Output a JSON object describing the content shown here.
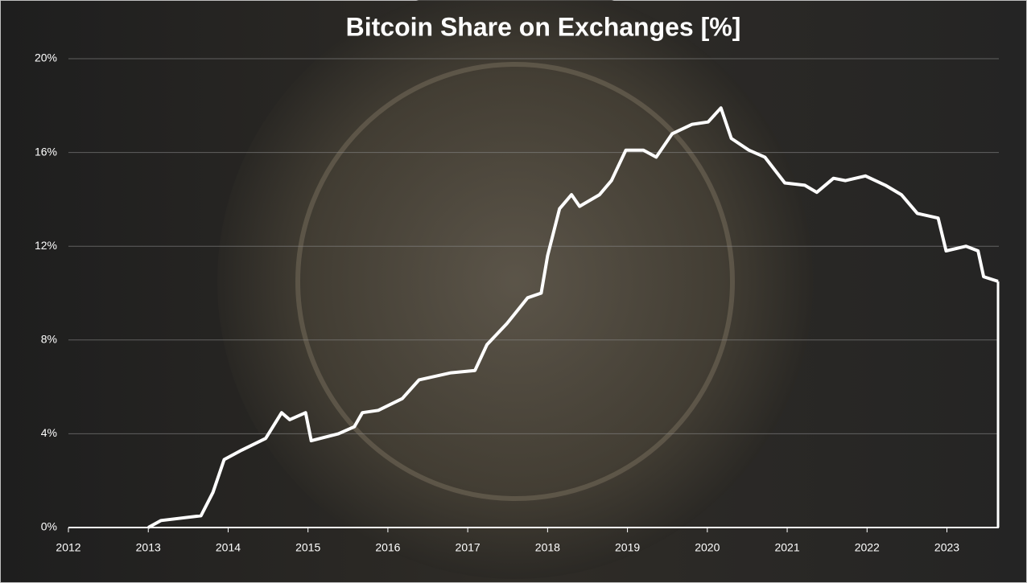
{
  "chart_data": {
    "type": "line",
    "title": "Bitcoin Share on Exchanges [%]",
    "series": [
      {
        "name": "Bitcoin share on exchanges",
        "color": "#ffffff",
        "x": [
          2013.0,
          2013.16,
          2013.66,
          2013.81,
          2013.95,
          2014.17,
          2014.47,
          2014.67,
          2014.77,
          2014.97,
          2015.04,
          2015.38,
          2015.58,
          2015.68,
          2015.88,
          2016.18,
          2016.39,
          2016.79,
          2017.09,
          2017.24,
          2017.49,
          2017.75,
          2017.92,
          2018.0,
          2018.15,
          2018.3,
          2018.4,
          2018.65,
          2018.8,
          2018.98,
          2019.2,
          2019.36,
          2019.56,
          2019.81,
          2020.01,
          2020.17,
          2020.3,
          2020.52,
          2020.72,
          2020.97,
          2021.22,
          2021.37,
          2021.58,
          2021.73,
          2021.98,
          2022.23,
          2022.43,
          2022.63,
          2022.89,
          2022.99,
          2023.24,
          2023.39,
          2023.46,
          2023.64
        ],
        "values": [
          0,
          0.3,
          0.5,
          1.5,
          2.9,
          3.3,
          3.8,
          4.9,
          4.6,
          4.9,
          3.7,
          4.0,
          4.3,
          4.9,
          5.0,
          5.5,
          6.3,
          6.6,
          6.7,
          7.8,
          8.7,
          9.8,
          10.0,
          11.6,
          13.6,
          14.2,
          13.7,
          14.2,
          14.8,
          16.1,
          16.1,
          15.8,
          16.8,
          17.2,
          17.3,
          17.9,
          16.6,
          16.1,
          15.8,
          14.7,
          14.6,
          14.3,
          14.9,
          14.8,
          15.0,
          14.6,
          14.2,
          13.4,
          13.2,
          11.8,
          12.0,
          11.8,
          10.7,
          10.5
        ]
      }
    ],
    "xlim": [
      2012,
      2023.65
    ],
    "xticks": [
      2012,
      2013,
      2014,
      2015,
      2016,
      2017,
      2018,
      2019,
      2020,
      2021,
      2022,
      2023
    ],
    "ylim": [
      0,
      20
    ],
    "yticks": [
      {
        "value": 0,
        "label": "0%"
      },
      {
        "value": 4,
        "label": "4%"
      },
      {
        "value": 8,
        "label": "8%"
      },
      {
        "value": 12,
        "label": "12%"
      },
      {
        "value": 16,
        "label": "16%"
      },
      {
        "value": 20,
        "label": "20%"
      }
    ],
    "grid": true
  }
}
